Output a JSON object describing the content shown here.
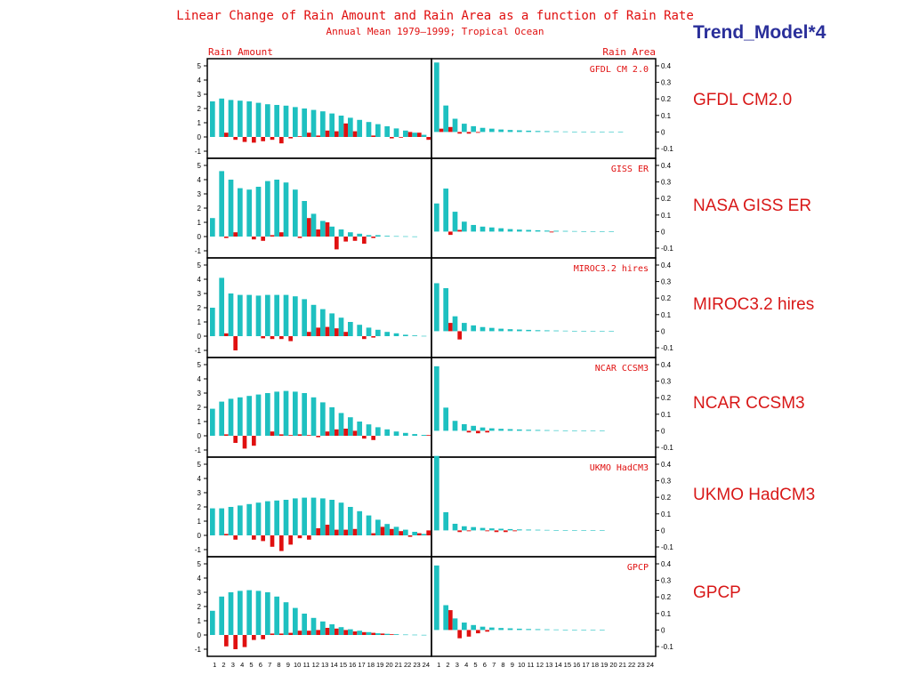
{
  "slide_title": "Trend_Model*4",
  "model_labels": [
    "GFDL CM2.0",
    "NASA GISS ER",
    "MIROC3.2 hires",
    "NCAR CCSM3",
    "UKMO HadCM3",
    "GPCP"
  ],
  "colors": {
    "amount": "#1ec0c0",
    "change": "#e01010",
    "title": "#e01010",
    "slide_title": "#2a2f9a",
    "frame": "#000000"
  },
  "chart_data": {
    "type": "bar",
    "title": "Linear Change of Rain Amount and Rain Area as a function of Rain Rate",
    "subtitle": "Annual Mean 1979–1999; Tropical Ocean",
    "left_ylabel": "Rain Amount",
    "right_ylabel": "Rain Area",
    "categories": [
      "1",
      "2",
      "3",
      "4",
      "5",
      "6",
      "7",
      "8",
      "9",
      "10",
      "11",
      "12",
      "13",
      "14",
      "15",
      "16",
      "17",
      "18",
      "19",
      "20",
      "21",
      "22",
      "23",
      "24"
    ],
    "left_ylim": [
      -1,
      5
    ],
    "left_yticks": [
      "-1",
      "0",
      "1",
      "2",
      "3",
      "4",
      "5"
    ],
    "right_ylim": [
      -0.1,
      0.45
    ],
    "right_yticks": [
      "-0.1",
      "0",
      "0.1",
      "0.2",
      "0.3",
      "0.4"
    ],
    "panels": [
      {
        "name": "GFDL CM 2.0",
        "rain_amount_mean": [
          2.5,
          2.7,
          2.6,
          2.55,
          2.5,
          2.4,
          2.3,
          2.25,
          2.2,
          2.1,
          2.0,
          1.9,
          1.8,
          1.65,
          1.5,
          1.35,
          1.2,
          1.05,
          0.9,
          0.75,
          0.6,
          0.45,
          0.3,
          0.15
        ],
        "rain_amount_change": [
          0.0,
          0.3,
          -0.2,
          -0.35,
          -0.4,
          -0.3,
          -0.2,
          -0.45,
          -0.1,
          0.05,
          0.3,
          0.1,
          0.45,
          0.4,
          0.95,
          0.4,
          0.0,
          0.1,
          0.0,
          -0.1,
          -0.05,
          0.35,
          0.3,
          -0.2
        ],
        "rain_area_mean": [
          0.42,
          0.16,
          0.08,
          0.05,
          0.035,
          0.025,
          0.02,
          0.015,
          0.012,
          0.01,
          0.008,
          0.006,
          0.005,
          0.004,
          0.003,
          0.002,
          0.002,
          0.001,
          0.001,
          0.001,
          0.001,
          0.0,
          0.0,
          0.0
        ],
        "rain_area_change": [
          0.02,
          0.03,
          -0.01,
          -0.01,
          -0.005,
          0.0,
          0.0,
          0.0,
          0.0,
          0.0,
          0.0,
          0.0,
          0.0,
          0.0,
          0.0,
          0.0,
          0.0,
          0.0,
          0.0,
          0.0,
          0.0,
          0.0,
          0.0,
          0.0
        ]
      },
      {
        "name": "GISS ER",
        "rain_amount_mean": [
          1.3,
          4.6,
          4.0,
          3.4,
          3.3,
          3.5,
          3.9,
          4.0,
          3.8,
          3.3,
          2.5,
          1.6,
          1.1,
          0.7,
          0.5,
          0.3,
          0.2,
          0.1,
          0.1,
          0.05,
          0.03,
          0.02,
          0.01,
          0.0
        ],
        "rain_amount_change": [
          0.0,
          -0.1,
          0.3,
          0.0,
          -0.2,
          -0.3,
          0.1,
          0.3,
          0.0,
          -0.1,
          1.3,
          0.5,
          1.0,
          -0.9,
          -0.35,
          -0.3,
          -0.5,
          -0.1,
          0.0,
          0.0,
          0.0,
          0.0,
          0.0,
          0.0
        ],
        "rain_area_mean": [
          0.17,
          0.26,
          0.12,
          0.06,
          0.04,
          0.03,
          0.025,
          0.02,
          0.015,
          0.012,
          0.01,
          0.008,
          0.006,
          0.005,
          0.004,
          0.003,
          0.002,
          0.001,
          0.001,
          0.001,
          0.0,
          0.0,
          0.0,
          0.0
        ],
        "rain_area_change": [
          0.0,
          -0.02,
          0.01,
          0.0,
          0.0,
          0.0,
          0.0,
          0.0,
          0.0,
          0.0,
          0.0,
          0.0,
          -0.005,
          0.0,
          0.0,
          0.0,
          0.0,
          0.0,
          0.0,
          0.0,
          0.0,
          0.0,
          0.0,
          0.0
        ]
      },
      {
        "name": "MIROC3.2 hires",
        "rain_amount_mean": [
          2.0,
          4.1,
          3.0,
          2.9,
          2.9,
          2.85,
          2.9,
          2.9,
          2.9,
          2.8,
          2.6,
          2.2,
          1.9,
          1.6,
          1.3,
          1.0,
          0.8,
          0.6,
          0.45,
          0.3,
          0.2,
          0.1,
          0.05,
          0.02
        ],
        "rain_amount_change": [
          0.0,
          0.2,
          -1.0,
          0.0,
          0.0,
          -0.15,
          -0.2,
          -0.2,
          -0.35,
          0.0,
          0.3,
          0.6,
          0.65,
          0.55,
          0.3,
          0.0,
          -0.2,
          -0.1,
          0.0,
          0.0,
          0.0,
          0.0,
          0.0,
          0.0
        ],
        "rain_area_mean": [
          0.29,
          0.26,
          0.09,
          0.05,
          0.035,
          0.025,
          0.02,
          0.015,
          0.012,
          0.01,
          0.008,
          0.006,
          0.005,
          0.004,
          0.003,
          0.002,
          0.002,
          0.001,
          0.001,
          0.001,
          0.0,
          0.0,
          0.0,
          0.0
        ],
        "rain_area_change": [
          0.0,
          0.05,
          -0.05,
          0.0,
          0.0,
          0.0,
          0.0,
          0.0,
          0.0,
          0.0,
          0.0,
          0.0,
          0.0,
          0.0,
          0.0,
          0.0,
          0.0,
          0.0,
          0.0,
          0.0,
          0.0,
          0.0,
          0.0,
          0.0
        ]
      },
      {
        "name": "NCAR CCSM3",
        "rain_amount_mean": [
          1.9,
          2.4,
          2.6,
          2.7,
          2.8,
          2.9,
          3.0,
          3.1,
          3.15,
          3.1,
          3.0,
          2.7,
          2.35,
          2.0,
          1.6,
          1.3,
          1.0,
          0.8,
          0.6,
          0.45,
          0.3,
          0.2,
          0.12,
          0.06
        ],
        "rain_amount_change": [
          0.0,
          0.1,
          -0.5,
          -0.9,
          -0.7,
          0.0,
          0.3,
          0.1,
          0.05,
          0.1,
          0.05,
          -0.1,
          0.3,
          0.45,
          0.5,
          0.35,
          -0.2,
          -0.3,
          0.0,
          0.0,
          0.0,
          0.0,
          0.0,
          0.05
        ],
        "rain_area_mean": [
          0.39,
          0.14,
          0.06,
          0.04,
          0.03,
          0.02,
          0.015,
          0.012,
          0.01,
          0.008,
          0.006,
          0.005,
          0.004,
          0.003,
          0.002,
          0.002,
          0.001,
          0.001,
          0.001,
          0.0,
          0.0,
          0.0,
          0.0,
          0.0
        ],
        "rain_area_change": [
          0.0,
          0.0,
          0.0,
          -0.01,
          -0.015,
          -0.01,
          0.0,
          0.0,
          0.0,
          0.0,
          0.0,
          0.0,
          0.0,
          0.0,
          0.0,
          0.0,
          0.0,
          0.0,
          0.0,
          0.0,
          0.0,
          0.0,
          0.0,
          0.0
        ]
      },
      {
        "name": "UKMO HadCM3",
        "rain_amount_mean": [
          1.9,
          1.9,
          2.0,
          2.1,
          2.2,
          2.3,
          2.4,
          2.45,
          2.5,
          2.6,
          2.65,
          2.65,
          2.6,
          2.5,
          2.3,
          2.0,
          1.7,
          1.4,
          1.1,
          0.8,
          0.6,
          0.4,
          0.25,
          0.1
        ],
        "rain_amount_change": [
          0.0,
          0.1,
          -0.3,
          0.0,
          -0.3,
          -0.4,
          -0.8,
          -1.1,
          -0.65,
          -0.2,
          -0.3,
          0.5,
          0.75,
          0.4,
          0.4,
          0.45,
          0.0,
          0.15,
          0.6,
          0.45,
          0.3,
          -0.1,
          0.15,
          0.35
        ],
        "rain_area_mean": [
          0.45,
          0.11,
          0.04,
          0.025,
          0.02,
          0.015,
          0.012,
          0.01,
          0.008,
          0.006,
          0.005,
          0.004,
          0.003,
          0.002,
          0.002,
          0.001,
          0.001,
          0.001,
          0.001,
          0.0,
          0.0,
          0.0,
          0.0,
          0.0
        ],
        "rain_area_change": [
          0.0,
          0.0,
          -0.01,
          -0.005,
          0.0,
          -0.005,
          -0.01,
          -0.01,
          -0.005,
          0.0,
          0.0,
          0.0,
          0.0,
          0.0,
          0.0,
          0.0,
          0.0,
          0.0,
          0.0,
          0.0,
          0.0,
          0.0,
          0.0,
          0.0
        ]
      },
      {
        "name": "GPCP",
        "rain_amount_mean": [
          1.7,
          2.7,
          3.0,
          3.1,
          3.15,
          3.1,
          3.0,
          2.7,
          2.3,
          1.9,
          1.5,
          1.2,
          0.95,
          0.75,
          0.55,
          0.4,
          0.3,
          0.2,
          0.12,
          0.08,
          0.05,
          0.03,
          0.02,
          0.01
        ],
        "rain_amount_change": [
          0.0,
          -0.8,
          -1.0,
          -0.85,
          -0.35,
          -0.3,
          0.1,
          0.1,
          0.15,
          0.3,
          0.3,
          0.35,
          0.5,
          0.45,
          0.35,
          0.25,
          0.2,
          0.15,
          0.1,
          0.05,
          0.0,
          0.0,
          0.0,
          0.0
        ],
        "rain_area_mean": [
          0.39,
          0.15,
          0.07,
          0.045,
          0.03,
          0.02,
          0.015,
          0.012,
          0.01,
          0.008,
          0.006,
          0.005,
          0.004,
          0.003,
          0.002,
          0.002,
          0.001,
          0.001,
          0.001,
          0.0,
          0.0,
          0.0,
          0.0,
          0.0
        ],
        "rain_area_change": [
          0.0,
          0.12,
          -0.05,
          -0.04,
          -0.02,
          -0.01,
          0.0,
          0.0,
          0.0,
          0.0,
          0.0,
          0.0,
          0.0,
          0.0,
          0.0,
          0.0,
          0.0,
          0.0,
          0.0,
          0.0,
          0.0,
          0.0,
          0.0,
          0.0
        ]
      }
    ]
  }
}
